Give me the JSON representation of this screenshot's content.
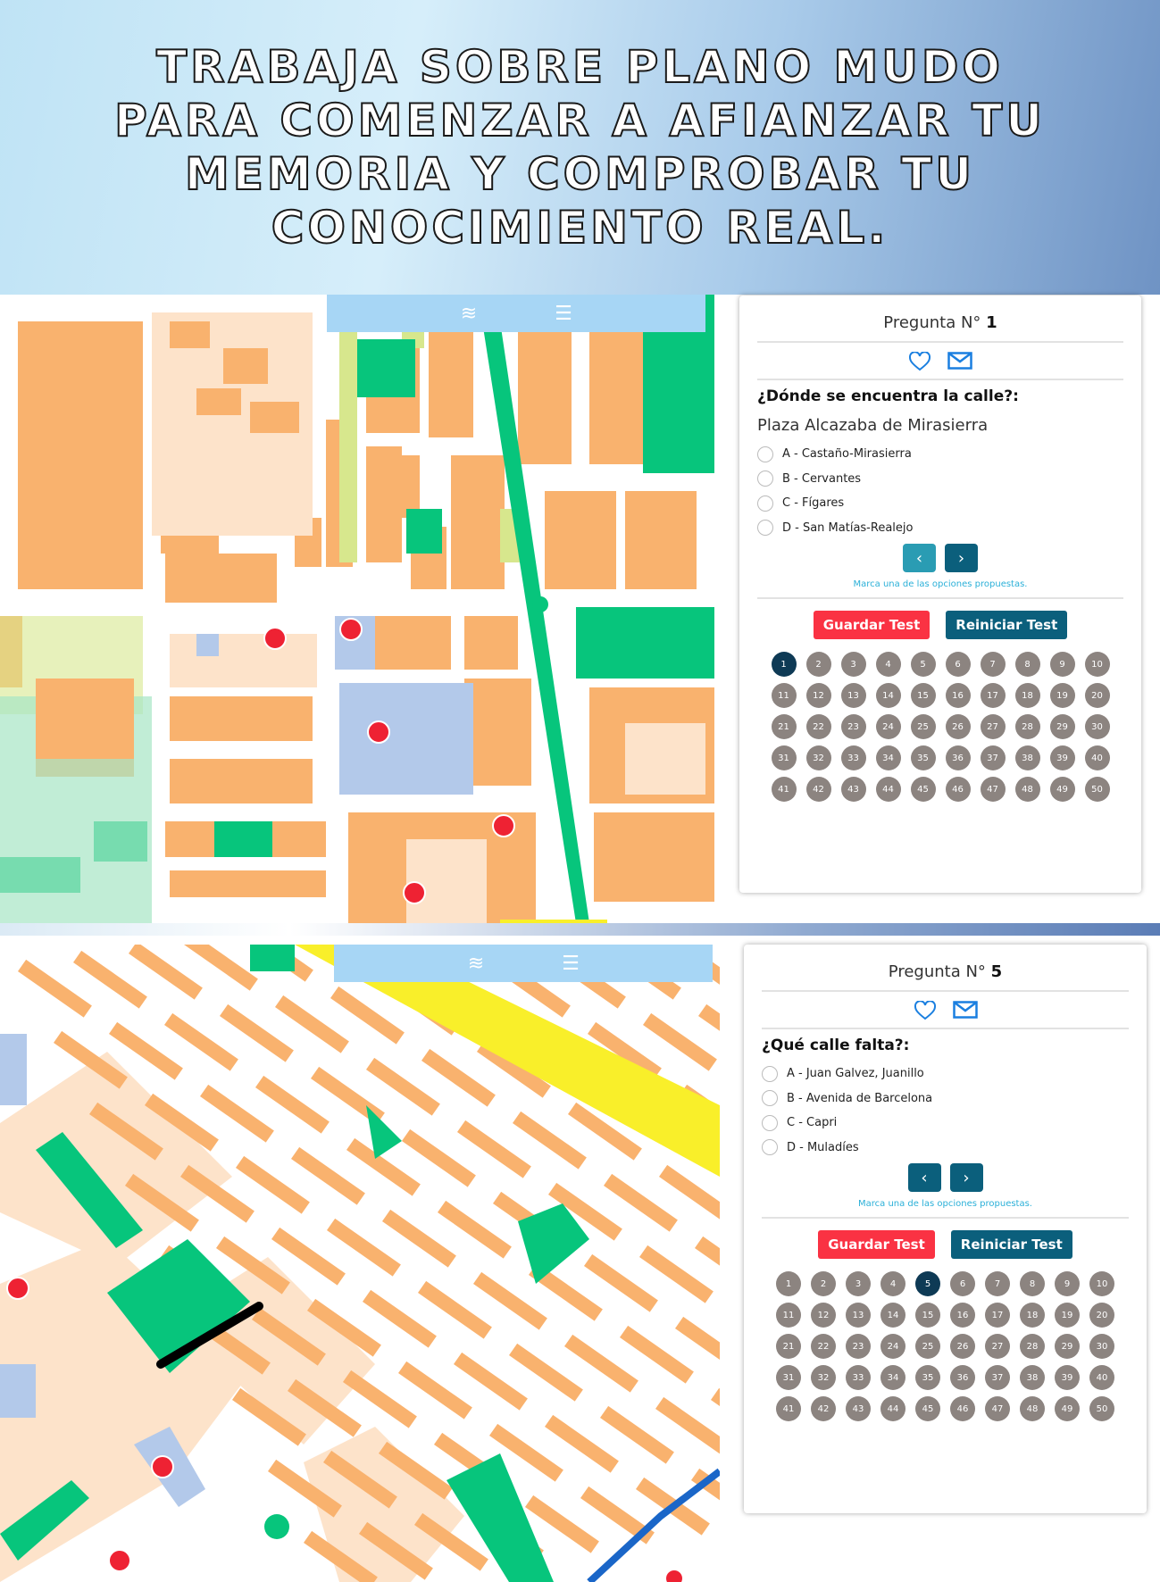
{
  "hero": {
    "title": "Trabaja sobre plano mudo para comenzar a afianzar tu memoria y comprobar tu conocimiento real."
  },
  "colors": {
    "block": "#f9b26e",
    "block_light": "#fde3ca",
    "green": "#07c57c",
    "pale_green": "#d7e78d",
    "blue_area": "#b3c9ea",
    "road": "#ffffff",
    "yellow_road": "#f9ef2a",
    "accent": "#0b5f7c",
    "red": "#fa3243"
  },
  "map_toolbar": {
    "icons": [
      "layers-icon",
      "list-icon"
    ]
  },
  "panel1": {
    "title_prefix": "Pregunta N°",
    "number": "1",
    "question": "¿Dónde se encuentra la calle?:",
    "subject": "Plaza Alcazaba de Mirasierra",
    "options": [
      "A - Castaño-Mirasierra",
      "B - Cervantes",
      "C - Fígares",
      "D - San Matías-Realejo"
    ],
    "hint": "Marca una de las opciones propuestas.",
    "save": "Guardar Test",
    "restart": "Reiniciar Test",
    "active": 1
  },
  "panel2": {
    "title_prefix": "Pregunta N°",
    "number": "5",
    "question": "¿Qué calle falta?:",
    "options": [
      "A - Juan Galvez, Juanillo",
      "B - Avenida de Barcelona",
      "C - Capri",
      "D - Muladíes"
    ],
    "hint": "Marca una de las opciones propuestas.",
    "save": "Guardar Test",
    "restart": "Reiniciar Test",
    "active": 5
  },
  "question_numbers": [
    1,
    2,
    3,
    4,
    5,
    6,
    7,
    8,
    9,
    10,
    11,
    12,
    13,
    14,
    15,
    16,
    17,
    18,
    19,
    20,
    21,
    22,
    23,
    24,
    25,
    26,
    27,
    28,
    29,
    30,
    31,
    32,
    33,
    34,
    35,
    36,
    37,
    38,
    39,
    40,
    41,
    42,
    43,
    44,
    45,
    46,
    47,
    48,
    49,
    50
  ]
}
